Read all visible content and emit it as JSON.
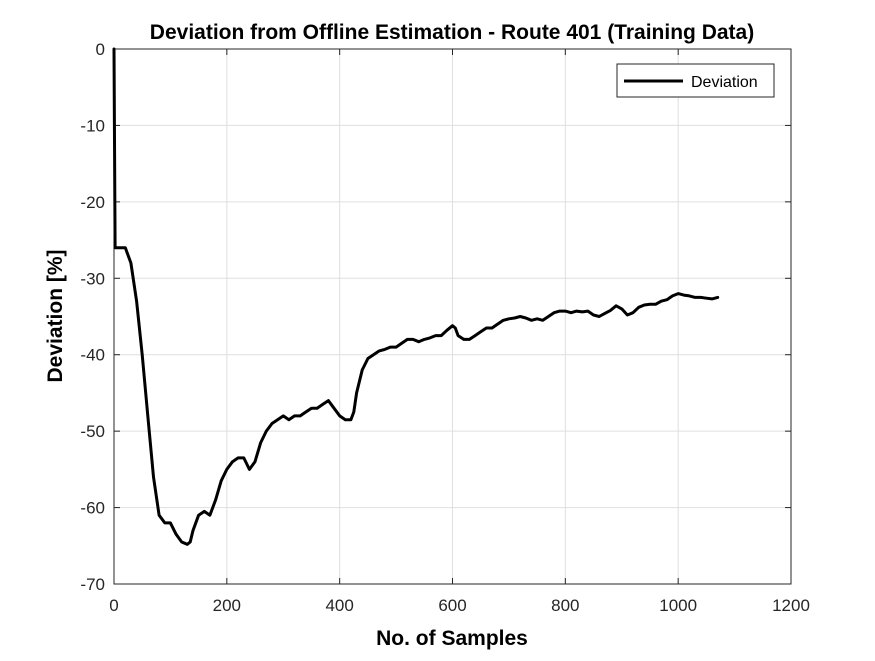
{
  "chart_data": {
    "type": "line",
    "title": "Deviation from Offline Estimation - Route 401 (Training Data)",
    "xlabel": "No. of Samples",
    "ylabel": "Deviation [%]",
    "xlim": [
      0,
      1200
    ],
    "ylim": [
      -70,
      0
    ],
    "xticks": [
      0,
      200,
      400,
      600,
      800,
      1000,
      1200
    ],
    "yticks": [
      0,
      -10,
      -20,
      -30,
      -40,
      -50,
      -60,
      -70
    ],
    "grid": true,
    "legend_position": "top-right",
    "series": [
      {
        "name": "Deviation",
        "color": "#000000",
        "x": [
          0,
          2,
          4,
          10,
          20,
          30,
          40,
          50,
          60,
          70,
          80,
          90,
          100,
          110,
          120,
          130,
          135,
          140,
          150,
          160,
          170,
          180,
          190,
          200,
          210,
          220,
          230,
          240,
          250,
          260,
          270,
          280,
          290,
          300,
          310,
          320,
          330,
          340,
          350,
          360,
          370,
          380,
          390,
          400,
          410,
          420,
          425,
          430,
          440,
          450,
          460,
          470,
          480,
          490,
          500,
          510,
          520,
          530,
          540,
          550,
          560,
          570,
          580,
          590,
          600,
          605,
          610,
          620,
          630,
          640,
          650,
          660,
          670,
          680,
          690,
          700,
          710,
          720,
          730,
          740,
          750,
          760,
          770,
          780,
          790,
          800,
          810,
          820,
          830,
          840,
          850,
          860,
          870,
          880,
          890,
          900,
          910,
          920,
          930,
          940,
          950,
          960,
          970,
          980,
          990,
          1000,
          1010,
          1020,
          1030,
          1040,
          1050,
          1060,
          1070
        ],
        "y": [
          0,
          -26,
          -26,
          -26,
          -26,
          -28,
          -33,
          -40,
          -48,
          -56,
          -61,
          -62,
          -62,
          -63.5,
          -64.5,
          -64.8,
          -64.5,
          -63,
          -61,
          -60.5,
          -61,
          -59,
          -56.5,
          -55,
          -54,
          -53.5,
          -53.5,
          -55,
          -54,
          -51.5,
          -50,
          -49,
          -48.5,
          -48,
          -48.5,
          -48,
          -48,
          -47.5,
          -47,
          -47,
          -46.5,
          -46,
          -47,
          -48,
          -48.5,
          -48.5,
          -47.5,
          -45,
          -42,
          -40.5,
          -40,
          -39.5,
          -39.3,
          -39,
          -39,
          -38.5,
          -38,
          -38,
          -38.3,
          -38,
          -37.8,
          -37.5,
          -37.5,
          -36.8,
          -36.2,
          -36.5,
          -37.5,
          -38,
          -38,
          -37.5,
          -37,
          -36.5,
          -36.5,
          -36,
          -35.5,
          -35.3,
          -35.2,
          -35,
          -35.2,
          -35.5,
          -35.3,
          -35.5,
          -35,
          -34.5,
          -34.3,
          -34.3,
          -34.5,
          -34.3,
          -34.4,
          -34.3,
          -34.8,
          -35,
          -34.6,
          -34.2,
          -33.6,
          -34,
          -34.8,
          -34.5,
          -33.8,
          -33.5,
          -33.4,
          -33.4,
          -33,
          -32.8,
          -32.3,
          -32,
          -32.2,
          -32.3,
          -32.5,
          -32.5,
          -32.6,
          -32.7,
          -32.5
        ]
      }
    ]
  }
}
